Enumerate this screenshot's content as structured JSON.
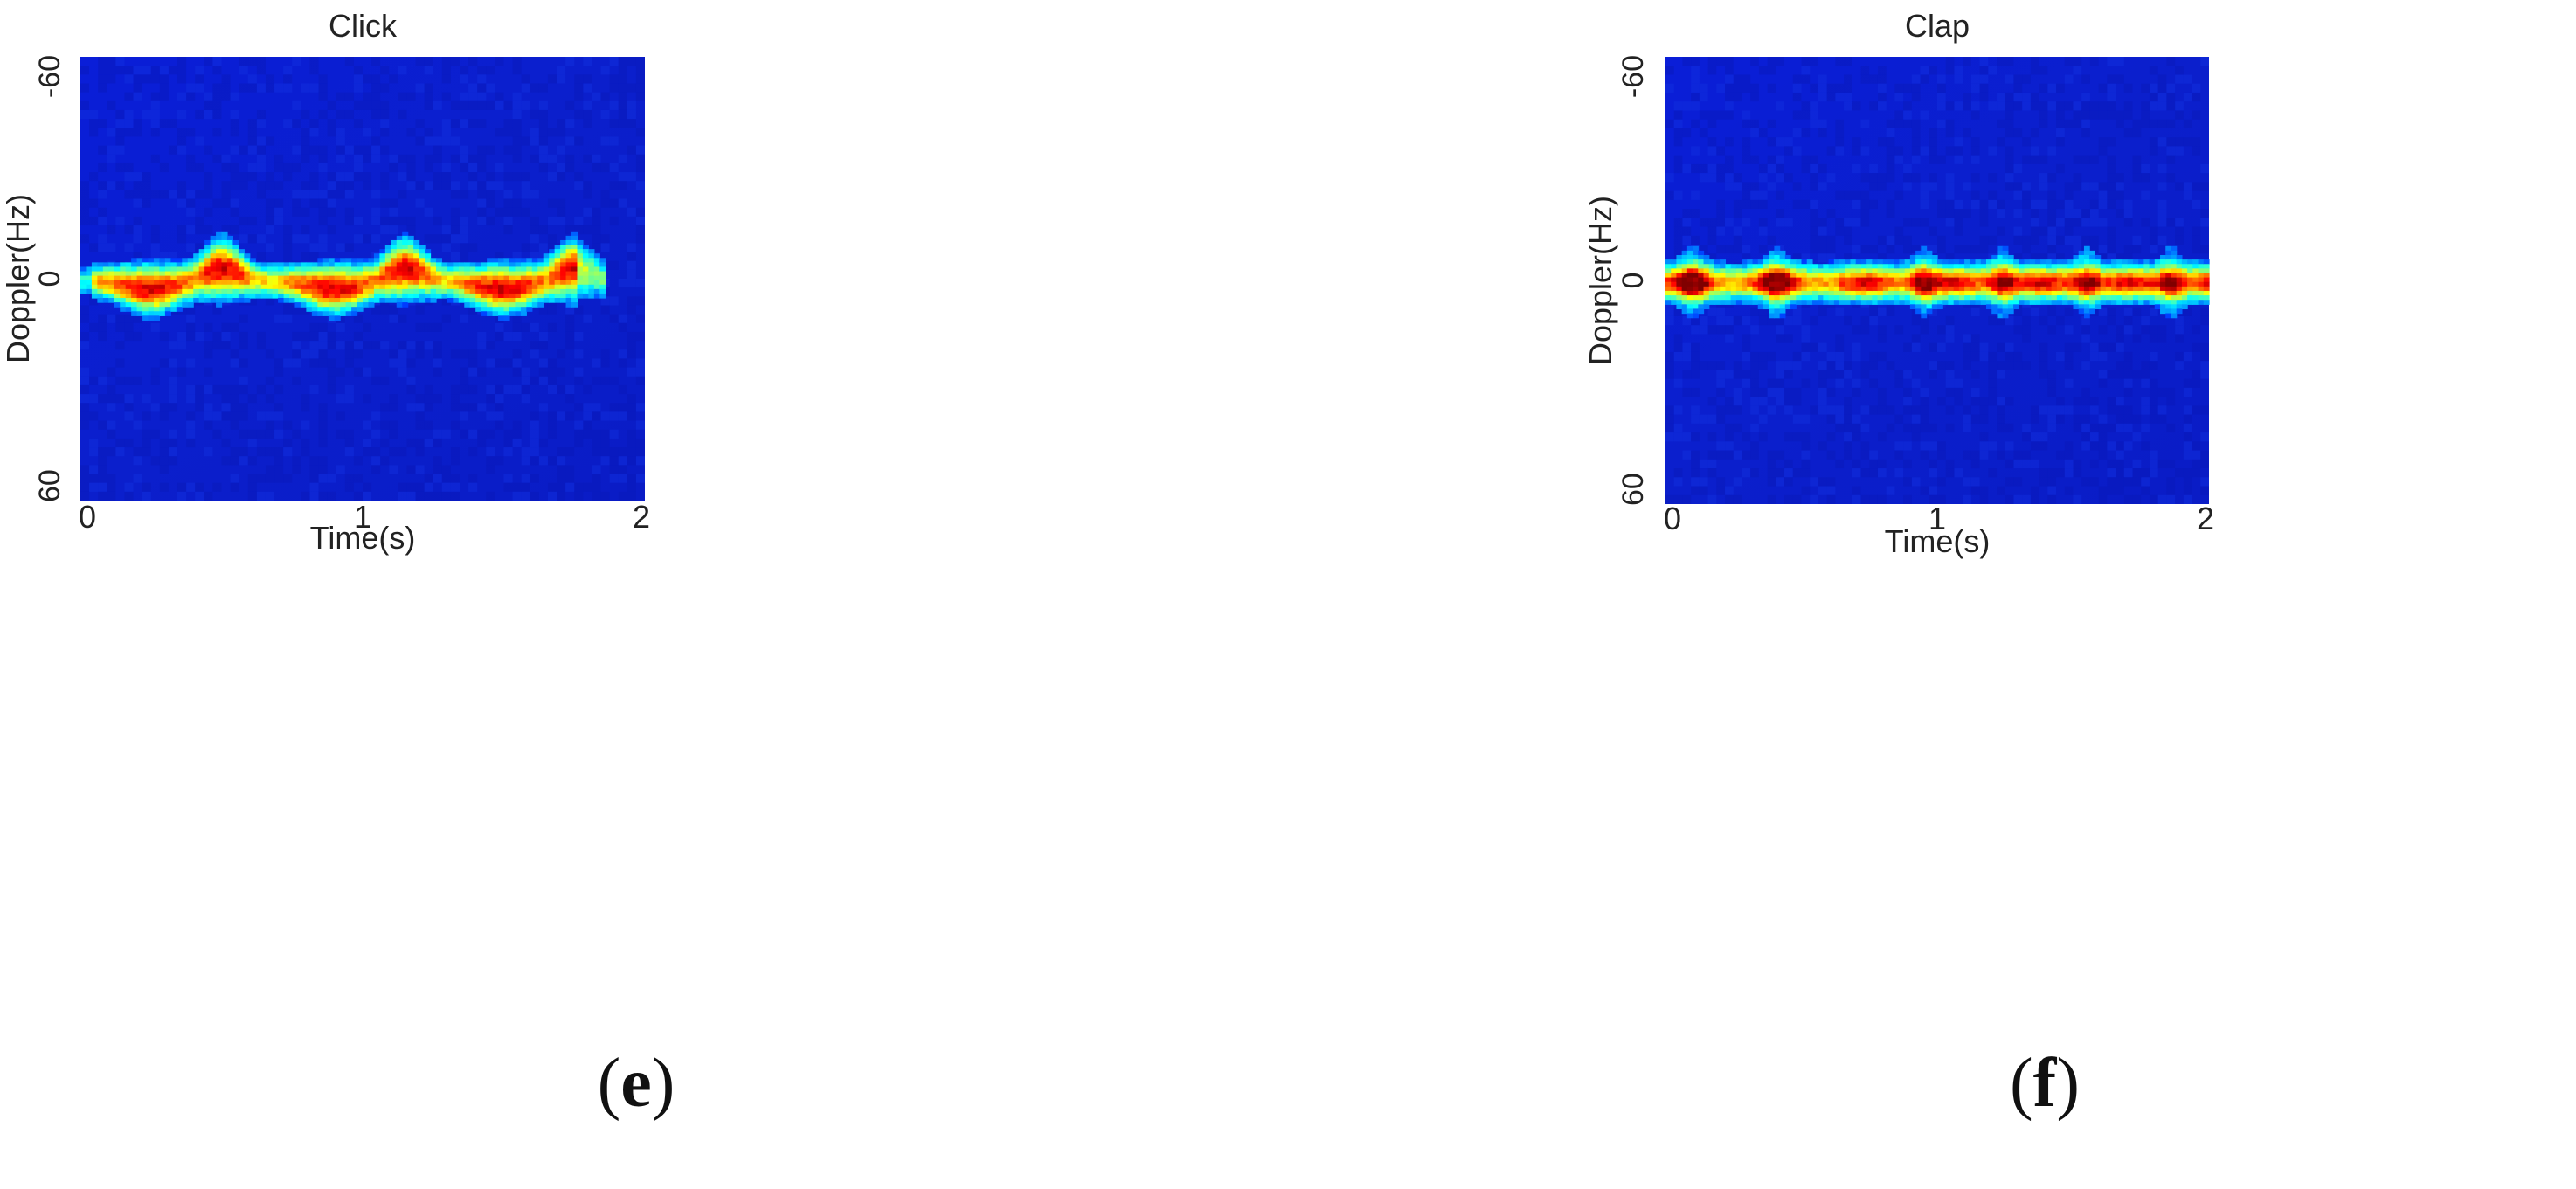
{
  "chart_data": [
    {
      "type": "heatmap",
      "title": "Click",
      "xlabel": "Time(s)",
      "ylabel": "Doppler(Hz)",
      "xlim": [
        0,
        2
      ],
      "ylim": [
        -60,
        60
      ],
      "x_ticks": [
        "0",
        "1",
        "2"
      ],
      "y_ticks": [
        "-60",
        "0",
        "60"
      ],
      "colormap": "jet",
      "band_center_hz": 0,
      "peak_times_s": [
        0.5,
        1.15,
        1.75
      ],
      "peak_extent_hz": -6,
      "trough_times_s": [
        0.25,
        0.9,
        1.5
      ],
      "trough_extent_hz": 4,
      "signal_end_s": 1.85,
      "panel_label": "e"
    },
    {
      "type": "heatmap",
      "title": "Clap",
      "xlabel": "Time(s)",
      "ylabel": "Doppler(Hz)",
      "xlim": [
        0,
        2
      ],
      "ylim": [
        -60,
        60
      ],
      "x_ticks": [
        "0",
        "1",
        "2"
      ],
      "y_ticks": [
        "-60",
        "0",
        "60"
      ],
      "colormap": "jet",
      "band_center_hz": 0,
      "band_halfwidth_hz": 4,
      "clap_times_s": [
        0.1,
        0.41,
        0.95,
        1.24,
        1.55,
        1.86
      ],
      "clap_extent_up_hz": -12,
      "clap_extent_down_hz": 12,
      "panel_label": "f"
    }
  ],
  "colors": {
    "background_blue": "#0b1fcf",
    "band_yellow": "#f7e81a",
    "band_red": "#e8240c",
    "band_darkred": "#8a0a0a",
    "text": "#222222"
  }
}
